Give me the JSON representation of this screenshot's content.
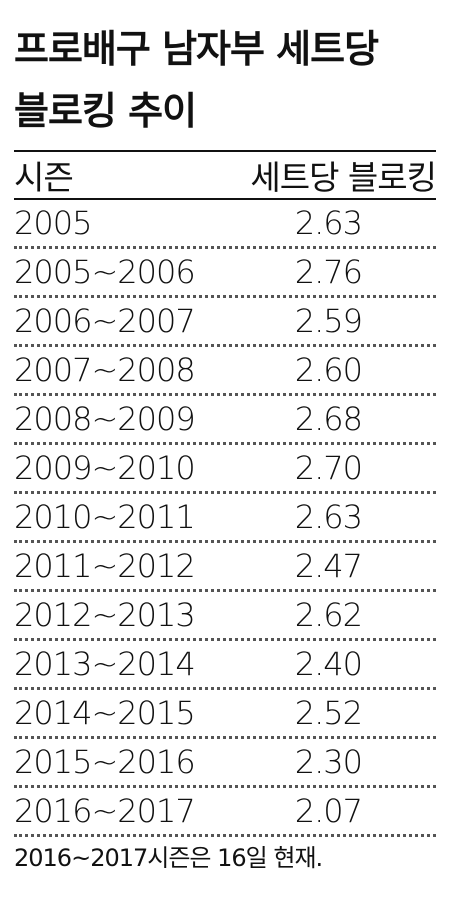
{
  "title_lines": [
    "프로배구 남자부 세트당",
    "블로킹 추이"
  ],
  "chart_data": {
    "type": "table",
    "title": "프로배구 남자부 세트당 블로킹 추이",
    "columns": [
      "시즌",
      "세트당 블로킹"
    ],
    "rows": [
      {
        "season": "2005",
        "value": "2.63"
      },
      {
        "season": "2005~2006",
        "value": "2.76"
      },
      {
        "season": "2006~2007",
        "value": "2.59"
      },
      {
        "season": "2007~2008",
        "value": "2.60"
      },
      {
        "season": "2008~2009",
        "value": "2.68"
      },
      {
        "season": "2009~2010",
        "value": "2.70"
      },
      {
        "season": "2010~2011",
        "value": "2.63"
      },
      {
        "season": "2011~2012",
        "value": "2.47"
      },
      {
        "season": "2012~2013",
        "value": "2.62"
      },
      {
        "season": "2013~2014",
        "value": "2.40"
      },
      {
        "season": "2014~2015",
        "value": "2.52"
      },
      {
        "season": "2015~2016",
        "value": "2.30"
      },
      {
        "season": "2016~2017",
        "value": "2.07"
      }
    ]
  },
  "note": "2016~2017시즌은 16일 현재."
}
